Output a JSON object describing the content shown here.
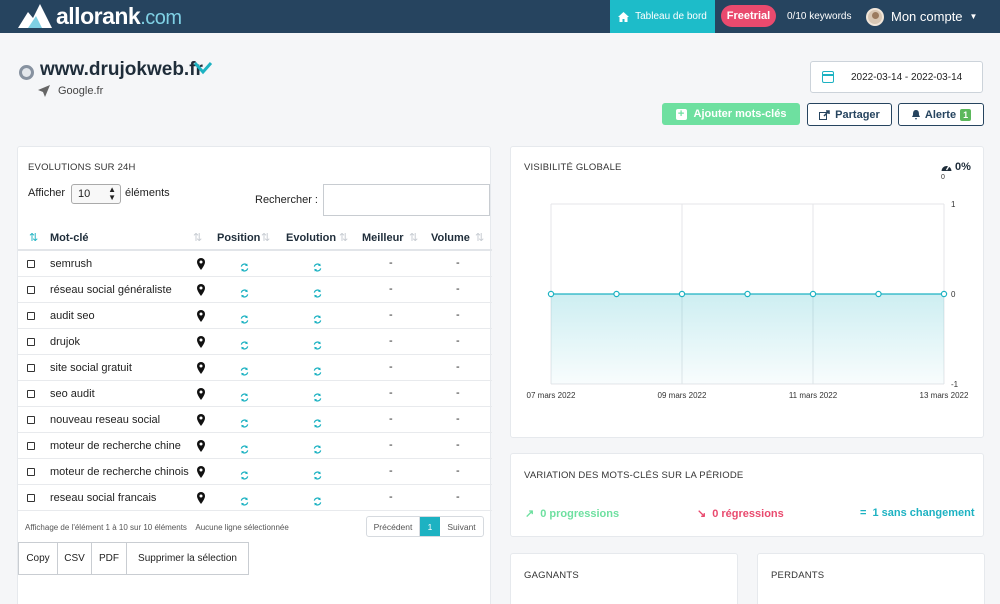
{
  "header": {
    "brand": "allorank",
    "brand_suffix": ".com",
    "dashboard_label": "Tableau de bord",
    "trial_badge": "Freetrial",
    "keyword_quota": "0/10 keywords",
    "account_label": "Mon compte"
  },
  "site": {
    "domain": "www.drujokweb.fr",
    "engine": "Google.fr",
    "date_range": "2022-03-14 - 2022-03-14"
  },
  "actions": {
    "add_keywords": "Ajouter mots-clés",
    "share": "Partager",
    "alert": "Alerte",
    "alert_count": "1"
  },
  "evolutions": {
    "title": "EVOLUTIONS SUR 24H",
    "show_prefix": "Afficher",
    "page_size": "10",
    "show_suffix": "éléments",
    "search_label": "Rechercher :",
    "search_value": "",
    "columns": [
      "Mot-clé",
      "Position",
      "Evolution",
      "Meilleur",
      "Volume"
    ],
    "rows": [
      {
        "keyword": "semrush",
        "best": "-",
        "volume": "-"
      },
      {
        "keyword": "réseau social généraliste",
        "best": "-",
        "volume": "-"
      },
      {
        "keyword": "audit seo",
        "best": "-",
        "volume": "-"
      },
      {
        "keyword": "drujok",
        "best": "-",
        "volume": "-"
      },
      {
        "keyword": "site social gratuit",
        "best": "-",
        "volume": "-"
      },
      {
        "keyword": "seo audit",
        "best": "-",
        "volume": "-"
      },
      {
        "keyword": "nouveau reseau social",
        "best": "-",
        "volume": "-"
      },
      {
        "keyword": "moteur de recherche chine",
        "best": "-",
        "volume": "-"
      },
      {
        "keyword": "moteur de recherche chinois",
        "best": "-",
        "volume": "-"
      },
      {
        "keyword": "reseau social francais",
        "best": "-",
        "volume": "-"
      }
    ],
    "info": "Affichage de l'élément 1 à 10 sur 10 éléments",
    "selection_info": "Aucune ligne sélectionnée",
    "pager": {
      "prev": "Précédent",
      "current": "1",
      "next": "Suivant"
    },
    "exports": [
      "Copy",
      "CSV",
      "PDF",
      "Supprimer la sélection"
    ]
  },
  "visibility": {
    "title": "VISIBILITÉ GLOBALE",
    "percent": "0%",
    "sub": "0"
  },
  "chart_data": {
    "type": "area",
    "x": [
      "07 mars 2022",
      "08 mars 2022",
      "09 mars 2022",
      "10 mars 2022",
      "11 mars 2022",
      "12 mars 2022",
      "13 mars 2022"
    ],
    "x_tick_labels": [
      "07 mars 2022",
      "09 mars 2022",
      "11 mars 2022",
      "13 mars 2022"
    ],
    "series": [
      {
        "values": [
          0,
          0,
          0,
          0,
          0,
          0,
          0
        ]
      }
    ],
    "ylim": [
      -1,
      1
    ],
    "y_ticks": [
      "1",
      "0",
      "-1"
    ],
    "y_axis_side": "right",
    "grid": true,
    "color": "#1db2c2"
  },
  "variation": {
    "title": "VARIATION DES MOTS-CLÉS SUR LA PÉRIODE",
    "progressions": "0 progressions",
    "regressions": "0 régressions",
    "unchanged": "1 sans changement",
    "colors": {
      "up": "#6ee0a0",
      "down": "#e94a6e",
      "same": "#1db2c2"
    }
  },
  "winners": {
    "title": "GAGNANTS"
  },
  "losers": {
    "title": "PERDANTS"
  },
  "colors": {
    "navbar": "#26445f",
    "accent": "#1db2c2",
    "trial": "#e94a6e",
    "add": "#6ee0a0"
  }
}
